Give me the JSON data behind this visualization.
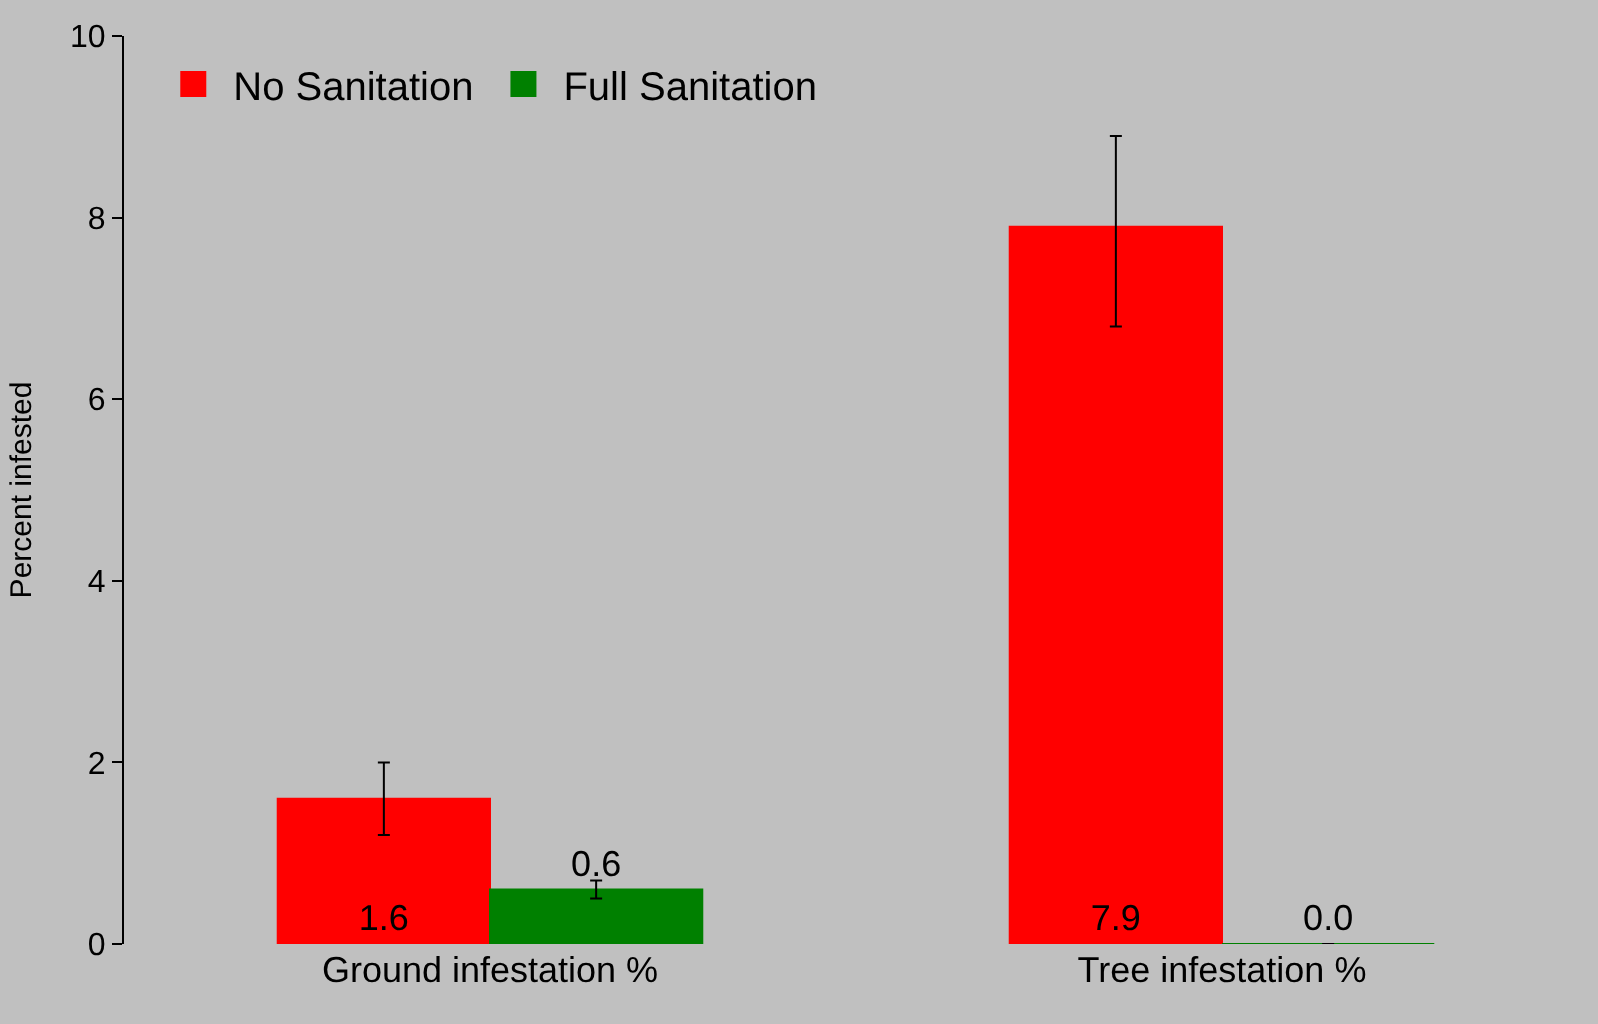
{
  "chart_data": {
    "type": "bar",
    "ylabel": "Percent infested",
    "categories": [
      "Ground infestation %",
      "Tree infestation %"
    ],
    "series": [
      {
        "name": "No Sanitation",
        "color": "#ff0000",
        "values": [
          1.6,
          7.9
        ],
        "value_labels": [
          "1.6",
          "7.9"
        ],
        "errors": [
          [
            1.2,
            2.0
          ],
          [
            6.8,
            8.9
          ]
        ]
      },
      {
        "name": "Full Sanitation",
        "color": "#008000",
        "values": [
          0.6,
          0.0
        ],
        "value_labels": [
          "0.6",
          "0.0"
        ],
        "errors": [
          [
            0.5,
            0.7
          ],
          0
        ]
      }
    ],
    "ylim": [
      0,
      10
    ],
    "yticks": [
      0,
      2,
      4,
      6,
      8,
      10
    ],
    "grid": false,
    "legend": "top left"
  }
}
